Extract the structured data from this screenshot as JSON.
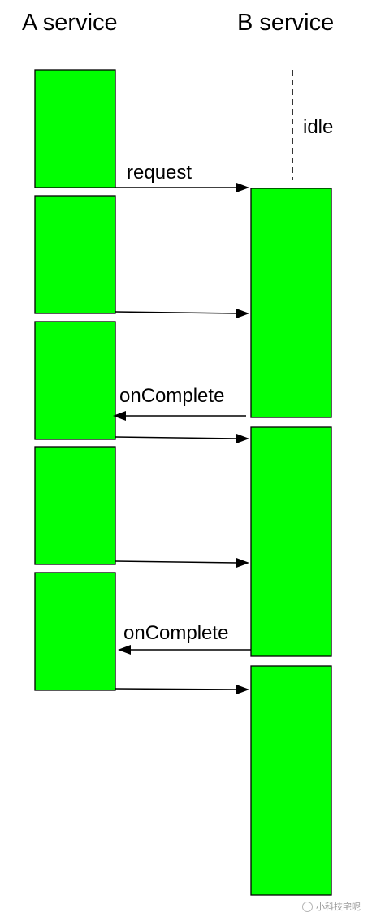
{
  "diagram": {
    "column_a_title": "A service",
    "column_b_title": "B service",
    "idle_label": "idle",
    "block_color": "#00ff00",
    "a_blocks": [
      {
        "name": "a-block-1"
      },
      {
        "name": "a-block-2"
      },
      {
        "name": "a-block-3"
      },
      {
        "name": "a-block-4"
      },
      {
        "name": "a-block-5"
      }
    ],
    "b_blocks": [
      {
        "name": "b-block-1"
      },
      {
        "name": "b-block-2"
      },
      {
        "name": "b-block-3"
      }
    ],
    "arrows": [
      {
        "direction": "A-to-B",
        "label": "request"
      },
      {
        "direction": "A-to-B",
        "label": ""
      },
      {
        "direction": "B-to-A",
        "label": "onComplete"
      },
      {
        "direction": "A-to-B",
        "label": ""
      },
      {
        "direction": "A-to-B",
        "label": ""
      },
      {
        "direction": "B-to-A",
        "label": "onComplete"
      },
      {
        "direction": "A-to-B",
        "label": ""
      }
    ]
  },
  "watermark": {
    "text": "小科技宅呢"
  }
}
